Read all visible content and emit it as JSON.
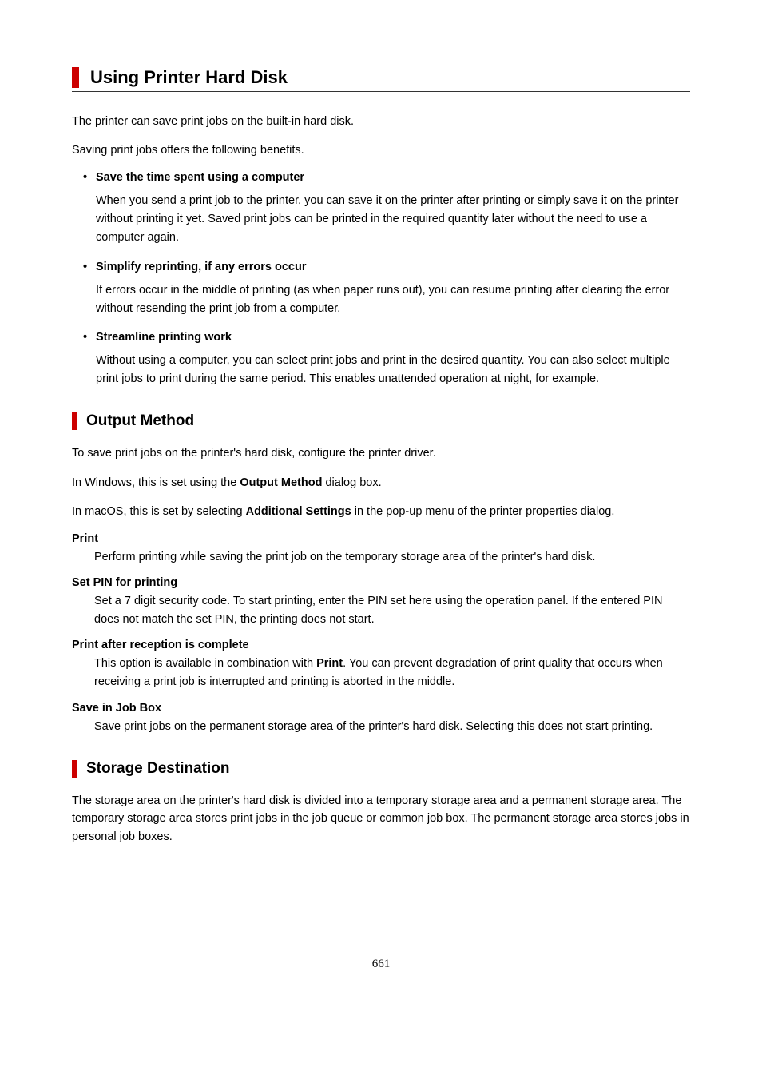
{
  "title": "Using Printer Hard Disk",
  "intro1": "The printer can save print jobs on the built-in hard disk.",
  "intro2": "Saving print jobs offers the following benefits.",
  "bullets": [
    {
      "heading": "Save the time spent using a computer",
      "body": "When you send a print job to the printer, you can save it on the printer after printing or simply save it on the printer without printing it yet. Saved print jobs can be printed in the required quantity later without the need to use a computer again."
    },
    {
      "heading": "Simplify reprinting, if any errors occur",
      "body": "If errors occur in the middle of printing (as when paper runs out), you can resume printing after clearing the error without resending the print job from a computer."
    },
    {
      "heading": "Streamline printing work",
      "body": "Without using a computer, you can select print jobs and print in the desired quantity. You can also select multiple print jobs to print during the same period. This enables unattended operation at night, for example."
    }
  ],
  "section_output": {
    "title": "Output Method",
    "p1": "To save print jobs on the printer's hard disk, configure the printer driver.",
    "p2_pre": "In Windows, this is set using the ",
    "p2_bold": "Output Method",
    "p2_post": " dialog box.",
    "p3_pre": "In macOS, this is set by selecting ",
    "p3_bold": "Additional Settings",
    "p3_post": " in the pop-up menu of the printer properties dialog.",
    "defs": [
      {
        "term": "Print",
        "body_pre": "Perform printing while saving the print job on the temporary storage area of the printer's hard disk.",
        "body_bold": "",
        "body_post": ""
      },
      {
        "term": "Set PIN for printing",
        "body_pre": "Set a 7 digit security code. To start printing, enter the PIN set here using the operation panel. If the entered PIN does not match the set PIN, the printing does not start.",
        "body_bold": "",
        "body_post": ""
      },
      {
        "term": "Print after reception is complete",
        "body_pre": "This option is available in combination with ",
        "body_bold": "Print",
        "body_post": ". You can prevent degradation of print quality that occurs when receiving a print job is interrupted and printing is aborted in the middle."
      },
      {
        "term": "Save in Job Box",
        "body_pre": "Save print jobs on the permanent storage area of the printer's hard disk. Selecting this does not start printing.",
        "body_bold": "",
        "body_post": ""
      }
    ]
  },
  "section_storage": {
    "title": "Storage Destination",
    "p1": "The storage area on the printer's hard disk is divided into a temporary storage area and a permanent storage area. The temporary storage area stores print jobs in the job queue or common job box. The permanent storage area stores jobs in personal job boxes."
  },
  "page_number": "661"
}
